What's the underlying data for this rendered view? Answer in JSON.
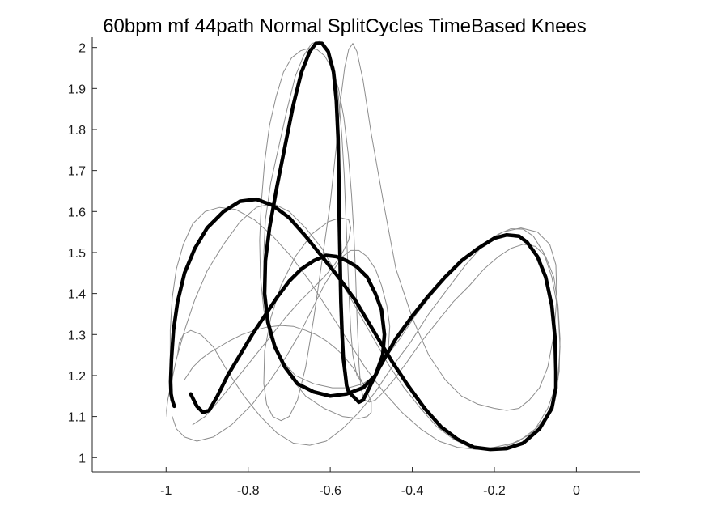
{
  "chart_data": {
    "type": "line",
    "title": "60bpm mf 44path Normal SplitCycles TimeBased Knees",
    "xlabel": "",
    "ylabel": "",
    "xlim": [
      -1.18,
      0.155
    ],
    "ylim": [
      0.965,
      2.025
    ],
    "xticks": [
      -1,
      -0.8,
      -0.6,
      -0.4,
      -0.2,
      0
    ],
    "xtick_labels": [
      "-1",
      "-0.8",
      "-0.6",
      "-0.4",
      "-0.2",
      "0"
    ],
    "yticks": [
      1,
      1.1,
      1.2,
      1.3,
      1.4,
      1.5,
      1.6,
      1.7,
      1.8,
      1.9,
      2
    ],
    "ytick_labels": [
      "1",
      "1.1",
      "1.2",
      "1.3",
      "1.4",
      "1.5",
      "1.6",
      "1.7",
      "1.8",
      "1.9",
      "2"
    ],
    "grid": false,
    "box": "left-bottom",
    "colors": {
      "mean": "#000000",
      "trial": "#8c8c8c"
    },
    "series": [
      {
        "style": "mean",
        "x": [
          -0.94,
          -0.925,
          -0.91,
          -0.895,
          -0.875,
          -0.85,
          -0.82,
          -0.79,
          -0.76,
          -0.73,
          -0.7,
          -0.67,
          -0.64,
          -0.61,
          -0.585,
          -0.56,
          -0.535,
          -0.51,
          -0.49,
          -0.475,
          -0.468,
          -0.472,
          -0.49,
          -0.52,
          -0.56,
          -0.6,
          -0.64,
          -0.68,
          -0.71,
          -0.735,
          -0.752,
          -0.76,
          -0.758,
          -0.748,
          -0.73,
          -0.71,
          -0.69,
          -0.67,
          -0.65,
          -0.635,
          -0.62,
          -0.605,
          -0.592,
          -0.585,
          -0.581,
          -0.579,
          -0.578,
          -0.576,
          -0.574,
          -0.571,
          -0.568,
          -0.563,
          -0.56,
          -0.555,
          -0.55,
          -0.545,
          -0.54,
          -0.535,
          -0.53,
          -0.52,
          -0.51,
          -0.5,
          -0.48,
          -0.46,
          -0.44,
          -0.4,
          -0.36,
          -0.32,
          -0.28,
          -0.24,
          -0.2,
          -0.17,
          -0.14,
          -0.12,
          -0.095,
          -0.075,
          -0.06,
          -0.052,
          -0.05,
          -0.05,
          -0.06,
          -0.09,
          -0.13,
          -0.17,
          -0.21,
          -0.25,
          -0.29,
          -0.33,
          -0.37,
          -0.41,
          -0.45,
          -0.48,
          -0.51,
          -0.54,
          -0.58,
          -0.62,
          -0.66,
          -0.7,
          -0.74,
          -0.78,
          -0.82,
          -0.86,
          -0.9,
          -0.93,
          -0.955,
          -0.972,
          -0.982,
          -0.987,
          -0.989,
          -0.988,
          -0.985,
          -0.98
        ],
        "y": [
          1.155,
          1.125,
          1.11,
          1.115,
          1.15,
          1.2,
          1.25,
          1.3,
          1.345,
          1.39,
          1.43,
          1.46,
          1.48,
          1.493,
          1.49,
          1.48,
          1.465,
          1.44,
          1.4,
          1.36,
          1.3,
          1.25,
          1.2,
          1.17,
          1.155,
          1.15,
          1.16,
          1.18,
          1.22,
          1.27,
          1.33,
          1.4,
          1.48,
          1.56,
          1.66,
          1.76,
          1.86,
          1.94,
          1.99,
          2.01,
          2.01,
          1.99,
          1.94,
          1.87,
          1.78,
          1.68,
          1.58,
          1.48,
          1.38,
          1.3,
          1.24,
          1.2,
          1.175,
          1.16,
          1.155,
          1.15,
          1.145,
          1.14,
          1.135,
          1.14,
          1.16,
          1.18,
          1.22,
          1.255,
          1.29,
          1.345,
          1.395,
          1.44,
          1.48,
          1.51,
          1.535,
          1.543,
          1.54,
          1.525,
          1.49,
          1.44,
          1.37,
          1.29,
          1.21,
          1.17,
          1.12,
          1.07,
          1.035,
          1.022,
          1.02,
          1.025,
          1.045,
          1.075,
          1.12,
          1.175,
          1.235,
          1.285,
          1.335,
          1.385,
          1.44,
          1.49,
          1.54,
          1.585,
          1.615,
          1.63,
          1.625,
          1.6,
          1.56,
          1.51,
          1.45,
          1.38,
          1.31,
          1.24,
          1.185,
          1.155,
          1.14,
          1.125
        ]
      },
      {
        "style": "trial",
        "x": [
          -0.955,
          -0.935,
          -0.915,
          -0.895,
          -0.87,
          -0.845,
          -0.815,
          -0.785,
          -0.755,
          -0.72,
          -0.69,
          -0.66,
          -0.635,
          -0.61,
          -0.585,
          -0.565,
          -0.545,
          -0.525,
          -0.51,
          -0.5,
          -0.5,
          -0.51,
          -0.53,
          -0.57,
          -0.615,
          -0.66,
          -0.7,
          -0.73,
          -0.75,
          -0.76,
          -0.762,
          -0.758,
          -0.745,
          -0.725,
          -0.705,
          -0.685,
          -0.665,
          -0.645,
          -0.625,
          -0.605,
          -0.59,
          -0.58,
          -0.572,
          -0.566,
          -0.562,
          -0.558,
          -0.554,
          -0.55,
          -0.545,
          -0.535,
          -0.52,
          -0.505,
          -0.485,
          -0.46,
          -0.43,
          -0.39,
          -0.35,
          -0.31,
          -0.27,
          -0.23,
          -0.19,
          -0.16,
          -0.13,
          -0.105,
          -0.08,
          -0.06,
          -0.045,
          -0.04,
          -0.045,
          -0.07,
          -0.1,
          -0.14,
          -0.18,
          -0.22,
          -0.26,
          -0.3,
          -0.34,
          -0.38,
          -0.42,
          -0.46,
          -0.5,
          -0.54,
          -0.58,
          -0.62,
          -0.66,
          -0.7,
          -0.74,
          -0.78,
          -0.82,
          -0.86,
          -0.9,
          -0.93,
          -0.955,
          -0.975,
          -0.988,
          -0.996,
          -0.999,
          -0.998
        ],
        "y": [
          1.19,
          1.22,
          1.24,
          1.255,
          1.27,
          1.285,
          1.3,
          1.31,
          1.318,
          1.322,
          1.32,
          1.31,
          1.3,
          1.285,
          1.265,
          1.245,
          1.22,
          1.19,
          1.16,
          1.135,
          1.11,
          1.1,
          1.095,
          1.1,
          1.12,
          1.15,
          1.2,
          1.26,
          1.34,
          1.42,
          1.5,
          1.58,
          1.67,
          1.76,
          1.85,
          1.93,
          1.98,
          2.01,
          2.015,
          1.995,
          1.95,
          1.88,
          1.79,
          1.69,
          1.59,
          1.49,
          1.39,
          1.31,
          1.25,
          1.2,
          1.18,
          1.19,
          1.21,
          1.25,
          1.29,
          1.35,
          1.4,
          1.45,
          1.49,
          1.52,
          1.545,
          1.558,
          1.557,
          1.54,
          1.5,
          1.44,
          1.36,
          1.27,
          1.19,
          1.12,
          1.07,
          1.04,
          1.025,
          1.02,
          1.025,
          1.045,
          1.075,
          1.12,
          1.17,
          1.23,
          1.3,
          1.37,
          1.44,
          1.51,
          1.56,
          1.6,
          1.62,
          1.61,
          1.575,
          1.52,
          1.455,
          1.385,
          1.31,
          1.24,
          1.18,
          1.14,
          1.115,
          1.1
        ]
      },
      {
        "style": "trial",
        "x": [
          -0.935,
          -0.905,
          -0.87,
          -0.83,
          -0.79,
          -0.75,
          -0.71,
          -0.675,
          -0.645,
          -0.615,
          -0.59,
          -0.57,
          -0.555,
          -0.55,
          -0.555,
          -0.575,
          -0.605,
          -0.645,
          -0.685,
          -0.72,
          -0.745,
          -0.76,
          -0.762,
          -0.755,
          -0.74,
          -0.72,
          -0.7,
          -0.68,
          -0.66,
          -0.64,
          -0.62,
          -0.6,
          -0.585,
          -0.575,
          -0.565,
          -0.555,
          -0.545,
          -0.535,
          -0.52,
          -0.5,
          -0.47,
          -0.44,
          -0.4,
          -0.36,
          -0.32,
          -0.28,
          -0.24,
          -0.2,
          -0.17,
          -0.14,
          -0.115,
          -0.09,
          -0.07,
          -0.055,
          -0.048,
          -0.05,
          -0.065,
          -0.095,
          -0.135,
          -0.18,
          -0.225,
          -0.27,
          -0.315,
          -0.36,
          -0.405,
          -0.45,
          -0.49,
          -0.53,
          -0.57,
          -0.61,
          -0.65,
          -0.69,
          -0.73,
          -0.77,
          -0.81,
          -0.85,
          -0.885,
          -0.915,
          -0.94,
          -0.958,
          -0.968,
          -0.972
        ],
        "y": [
          1.08,
          1.1,
          1.14,
          1.19,
          1.24,
          1.29,
          1.34,
          1.38,
          1.41,
          1.44,
          1.47,
          1.5,
          1.53,
          1.56,
          1.58,
          1.585,
          1.575,
          1.545,
          1.49,
          1.42,
          1.34,
          1.26,
          1.18,
          1.13,
          1.1,
          1.09,
          1.1,
          1.14,
          1.22,
          1.34,
          1.48,
          1.62,
          1.76,
          1.87,
          1.95,
          1.995,
          2.01,
          1.99,
          1.92,
          1.79,
          1.62,
          1.46,
          1.34,
          1.25,
          1.19,
          1.15,
          1.13,
          1.12,
          1.115,
          1.12,
          1.14,
          1.17,
          1.22,
          1.3,
          1.39,
          1.47,
          1.52,
          1.55,
          1.56,
          1.55,
          1.52,
          1.47,
          1.41,
          1.35,
          1.28,
          1.22,
          1.16,
          1.11,
          1.07,
          1.04,
          1.03,
          1.035,
          1.06,
          1.1,
          1.15,
          1.21,
          1.27,
          1.3,
          1.31,
          1.3,
          1.28,
          1.25
        ]
      },
      {
        "style": "trial",
        "x": [
          -0.985,
          -0.975,
          -0.955,
          -0.925,
          -0.885,
          -0.84,
          -0.79,
          -0.745,
          -0.705,
          -0.67,
          -0.64,
          -0.615,
          -0.59,
          -0.57,
          -0.55,
          -0.53,
          -0.51,
          -0.49,
          -0.475,
          -0.462,
          -0.455,
          -0.458,
          -0.47,
          -0.49,
          -0.52,
          -0.555,
          -0.595,
          -0.64,
          -0.685,
          -0.72,
          -0.745,
          -0.762,
          -0.77,
          -0.772,
          -0.768,
          -0.76,
          -0.748,
          -0.732,
          -0.714,
          -0.694,
          -0.672,
          -0.652,
          -0.632,
          -0.614,
          -0.596,
          -0.58,
          -0.567,
          -0.556,
          -0.548,
          -0.542,
          -0.538,
          -0.535,
          -0.532,
          -0.53,
          -0.527,
          -0.524,
          -0.52,
          -0.515,
          -0.505,
          -0.49,
          -0.47,
          -0.445,
          -0.415,
          -0.38,
          -0.34,
          -0.3,
          -0.26,
          -0.225,
          -0.19,
          -0.16,
          -0.13,
          -0.1,
          -0.075,
          -0.055,
          -0.045,
          -0.04,
          -0.042,
          -0.055,
          -0.08,
          -0.115,
          -0.155,
          -0.2,
          -0.245,
          -0.29,
          -0.335,
          -0.38,
          -0.425,
          -0.47,
          -0.515,
          -0.56,
          -0.605,
          -0.65,
          -0.695,
          -0.74,
          -0.785,
          -0.83,
          -0.87,
          -0.905,
          -0.935,
          -0.958,
          -0.975,
          -0.985,
          -0.99,
          -0.99
        ],
        "y": [
          1.1,
          1.07,
          1.05,
          1.04,
          1.05,
          1.08,
          1.13,
          1.19,
          1.25,
          1.31,
          1.37,
          1.42,
          1.46,
          1.49,
          1.505,
          1.505,
          1.49,
          1.46,
          1.42,
          1.37,
          1.32,
          1.27,
          1.23,
          1.2,
          1.18,
          1.17,
          1.17,
          1.18,
          1.2,
          1.24,
          1.29,
          1.36,
          1.44,
          1.53,
          1.62,
          1.72,
          1.81,
          1.88,
          1.94,
          1.975,
          1.992,
          1.998,
          1.995,
          1.98,
          1.95,
          1.9,
          1.83,
          1.74,
          1.64,
          1.54,
          1.44,
          1.35,
          1.28,
          1.23,
          1.19,
          1.165,
          1.15,
          1.14,
          1.135,
          1.14,
          1.16,
          1.19,
          1.23,
          1.28,
          1.33,
          1.38,
          1.42,
          1.46,
          1.49,
          1.51,
          1.52,
          1.515,
          1.49,
          1.44,
          1.37,
          1.29,
          1.21,
          1.14,
          1.09,
          1.055,
          1.035,
          1.025,
          1.02,
          1.025,
          1.04,
          1.07,
          1.11,
          1.16,
          1.22,
          1.29,
          1.36,
          1.43,
          1.49,
          1.54,
          1.58,
          1.605,
          1.61,
          1.6,
          1.57,
          1.52,
          1.46,
          1.39,
          1.31,
          1.23
        ]
      }
    ]
  }
}
